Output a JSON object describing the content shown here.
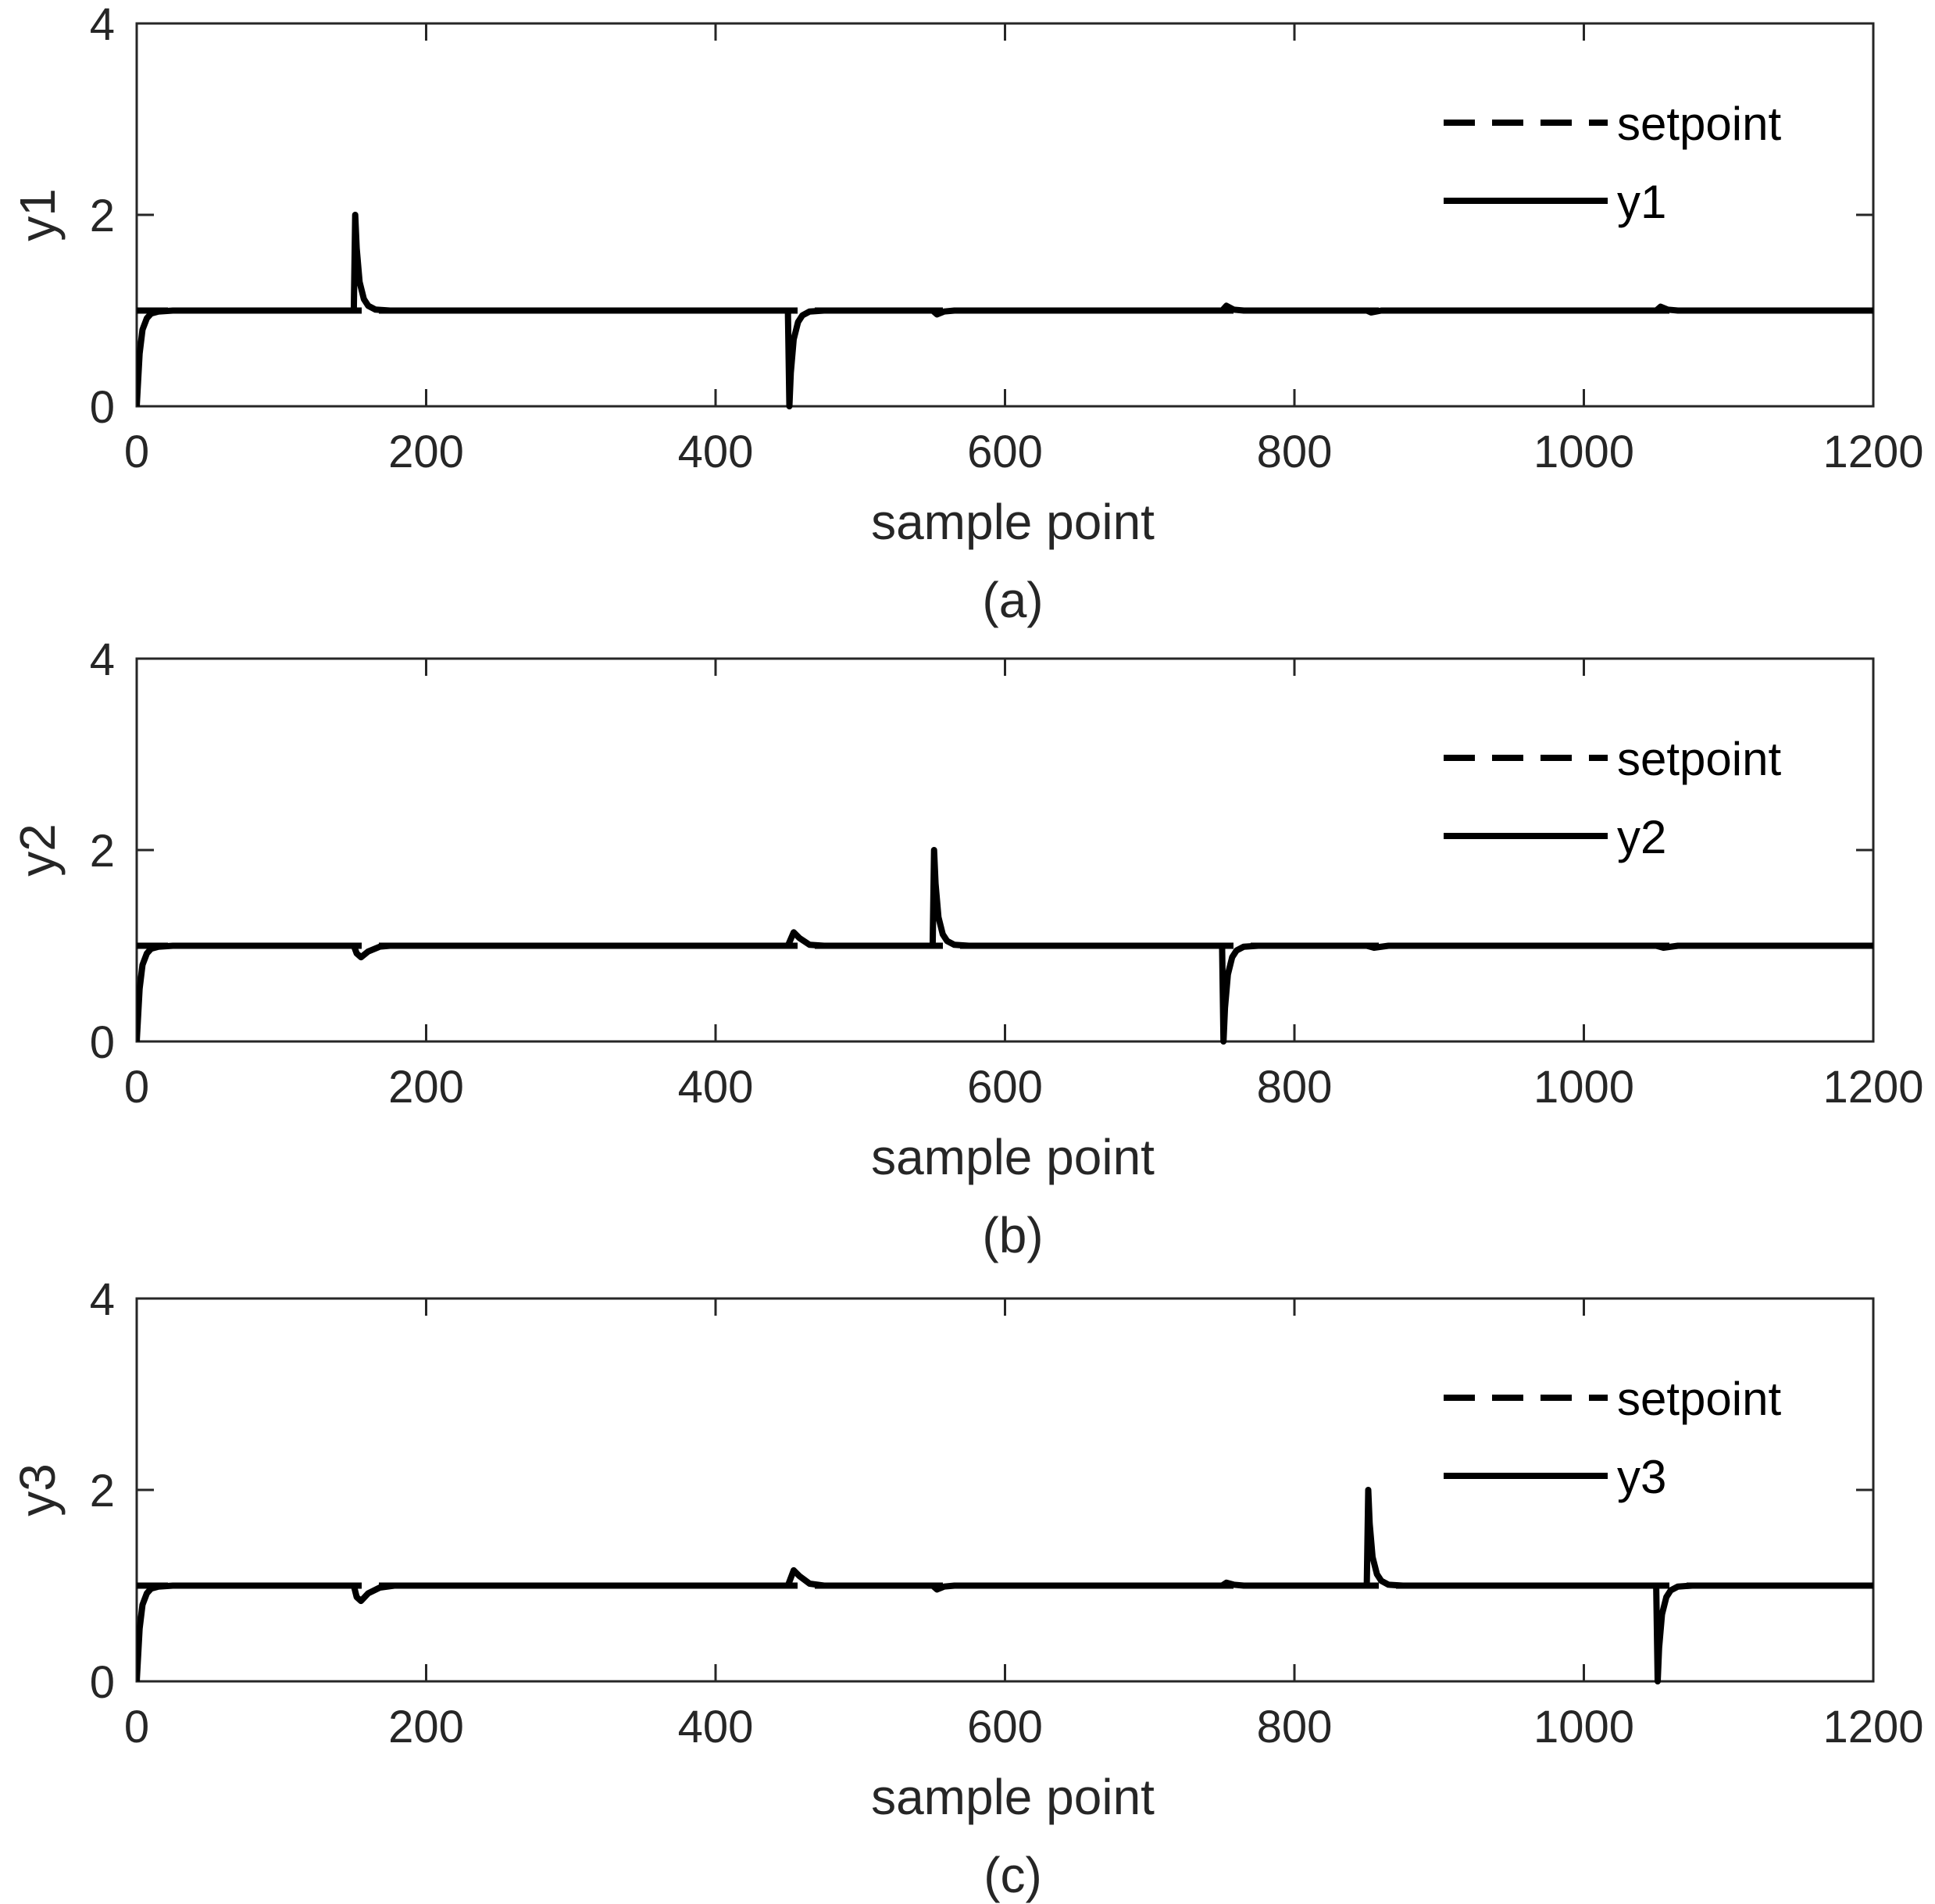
{
  "figure": {
    "background": "#ffffff",
    "axis_color": "#262626",
    "line_color": "#000000"
  },
  "chart_data": [
    {
      "type": "line",
      "caption": "(a)",
      "xlabel": "sample point",
      "ylabel": "y1",
      "xlim": [
        0,
        1200
      ],
      "ylim": [
        0,
        4
      ],
      "xticks": [
        0,
        200,
        400,
        600,
        800,
        1000,
        1200
      ],
      "yticks": [
        0,
        2,
        4
      ],
      "legend_position": "top-right",
      "grid": false,
      "series": [
        {
          "name": "setpoint",
          "style": "dashed",
          "x": [
            0,
            1200
          ],
          "y": [
            1,
            1
          ]
        },
        {
          "name": "y1",
          "style": "solid",
          "x": [
            0,
            2,
            4,
            7,
            10,
            15,
            25,
            150,
            151,
            152,
            154,
            157,
            160,
            165,
            175,
            450,
            451,
            452,
            454,
            457,
            460,
            465,
            475,
            550,
            553,
            558,
            565,
            750,
            753,
            758,
            765,
            850,
            853,
            860,
            1050,
            1053,
            1058,
            1065,
            1200
          ],
          "y": [
            0,
            0.55,
            0.8,
            0.92,
            0.97,
            0.99,
            1,
            1,
            2,
            1.65,
            1.3,
            1.12,
            1.05,
            1.01,
            1,
            1,
            0,
            0.35,
            0.7,
            0.88,
            0.95,
            0.99,
            1,
            1,
            0.96,
            0.99,
            1,
            1,
            1.05,
            1.01,
            1,
            1,
            0.98,
            1,
            1,
            1.04,
            1.01,
            1,
            1
          ]
        }
      ]
    },
    {
      "type": "line",
      "caption": "(b)",
      "xlabel": "sample point",
      "ylabel": "y2",
      "xlim": [
        0,
        1200
      ],
      "ylim": [
        0,
        4
      ],
      "xticks": [
        0,
        200,
        400,
        600,
        800,
        1000,
        1200
      ],
      "yticks": [
        0,
        2,
        4
      ],
      "legend_position": "top-right",
      "grid": false,
      "series": [
        {
          "name": "setpoint",
          "style": "dashed",
          "x": [
            0,
            1200
          ],
          "y": [
            1,
            1
          ]
        },
        {
          "name": "y2",
          "style": "solid",
          "x": [
            0,
            2,
            4,
            7,
            10,
            15,
            25,
            150,
            152,
            155,
            160,
            168,
            175,
            450,
            454,
            458,
            465,
            475,
            550,
            551,
            552,
            554,
            557,
            560,
            565,
            575,
            750,
            751,
            752,
            754,
            757,
            760,
            765,
            775,
            850,
            855,
            865,
            1050,
            1055,
            1065,
            1200
          ],
          "y": [
            0,
            0.55,
            0.8,
            0.92,
            0.97,
            0.99,
            1,
            1,
            0.92,
            0.88,
            0.94,
            0.99,
            1,
            1,
            1.14,
            1.08,
            1.01,
            1,
            1,
            2,
            1.65,
            1.3,
            1.12,
            1.05,
            1.01,
            1,
            1,
            0,
            0.35,
            0.7,
            0.88,
            0.95,
            0.99,
            1,
            1,
            0.98,
            1,
            1,
            0.98,
            1,
            1
          ]
        }
      ]
    },
    {
      "type": "line",
      "caption": "(c)",
      "xlabel": "sample point",
      "ylabel": "y3",
      "xlim": [
        0,
        1200
      ],
      "ylim": [
        0,
        4
      ],
      "xticks": [
        0,
        200,
        400,
        600,
        800,
        1000,
        1200
      ],
      "yticks": [
        0,
        2,
        4
      ],
      "legend_position": "top-right",
      "grid": false,
      "series": [
        {
          "name": "setpoint",
          "style": "dashed",
          "x": [
            0,
            1200
          ],
          "y": [
            1,
            1
          ]
        },
        {
          "name": "y3",
          "style": "solid",
          "x": [
            0,
            2,
            4,
            7,
            10,
            15,
            25,
            150,
            152,
            155,
            160,
            168,
            178,
            450,
            454,
            458,
            465,
            475,
            550,
            553,
            558,
            565,
            750,
            753,
            758,
            765,
            850,
            851,
            852,
            854,
            857,
            860,
            865,
            875,
            1050,
            1051,
            1052,
            1054,
            1057,
            1060,
            1065,
            1075,
            1200
          ],
          "y": [
            0,
            0.55,
            0.8,
            0.92,
            0.97,
            0.99,
            1,
            1,
            0.88,
            0.84,
            0.92,
            0.98,
            1,
            1,
            1.16,
            1.1,
            1.02,
            1,
            1,
            0.96,
            0.99,
            1,
            1,
            1.03,
            1.01,
            1,
            1,
            2,
            1.65,
            1.3,
            1.12,
            1.05,
            1.01,
            1,
            1,
            0,
            0.35,
            0.7,
            0.88,
            0.95,
            0.99,
            1,
            1
          ]
        }
      ]
    }
  ]
}
